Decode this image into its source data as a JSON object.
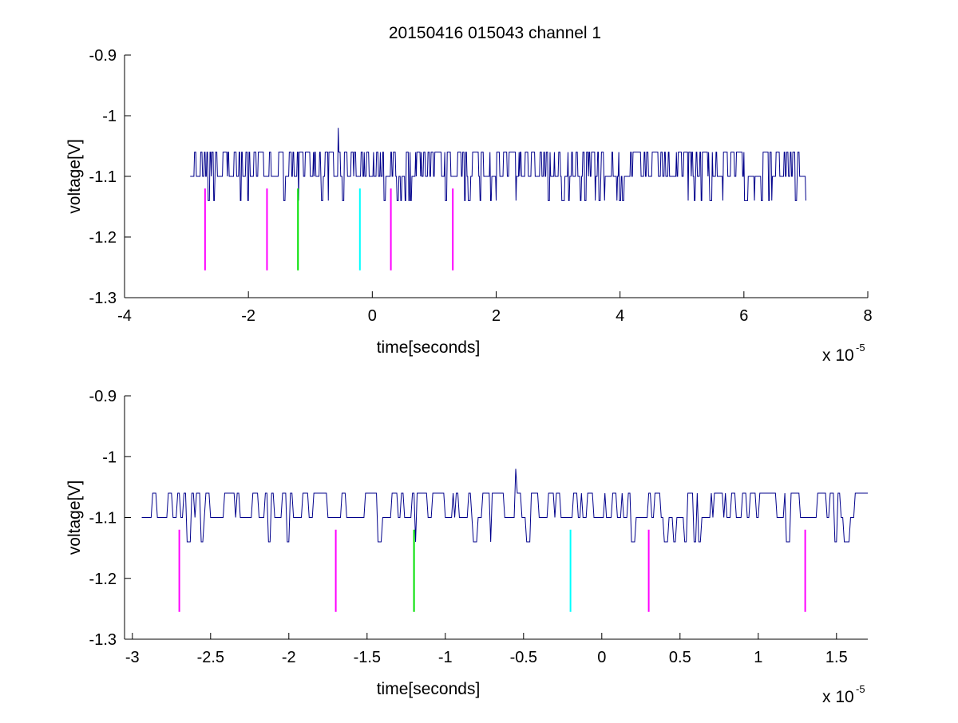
{
  "figure_title": "20150416 015043 channel 1",
  "colors": {
    "trace": "#00008b",
    "marker_magenta": "#ff00ff",
    "marker_green": "#00e000",
    "marker_cyan": "#00ffff",
    "axis": "#000000",
    "background": "#ffffff"
  },
  "chart_data": [
    {
      "type": "line",
      "title": "20150416 015043 channel 1",
      "xlabel": "time[seconds]",
      "ylabel": "voltage[V]",
      "x_multiplier_label": "x 10",
      "x_multiplier_exponent": "-5",
      "xlim": [
        -4e-05,
        8e-05
      ],
      "ylim": [
        -1.3,
        -0.9
      ],
      "y_reversed": true,
      "grid": false,
      "x_ticks": [
        -4e-05,
        -2e-05,
        0,
        2e-05,
        4e-05,
        6e-05,
        8e-05
      ],
      "x_tick_labels": [
        "-4",
        "-2",
        "0",
        "2",
        "4",
        "6",
        "8"
      ],
      "y_ticks": [
        -0.9,
        -1.0,
        -1.1,
        -1.2,
        -1.3
      ],
      "y_tick_labels": [
        "-0.9",
        "-1",
        "-1.1",
        "-1.2",
        "-1.3"
      ],
      "series": [
        {
          "trace_x_range": [
            -2.94e-05,
            7e-05
          ],
          "baseline_level": -1.1,
          "high_level": -1.06,
          "low_level": -1.14,
          "peak": {
            "x": -5.5e-06,
            "y": -1.02
          }
        }
      ],
      "markers": [
        {
          "x": -2.7e-05,
          "y_range": [
            -1.12,
            -1.255
          ],
          "color": "magenta"
        },
        {
          "x": -1.7e-05,
          "y_range": [
            -1.12,
            -1.255
          ],
          "color": "magenta"
        },
        {
          "x": -1.2e-05,
          "y_range": [
            -1.12,
            -1.255
          ],
          "color": "green"
        },
        {
          "x": -2e-06,
          "y_range": [
            -1.12,
            -1.255
          ],
          "color": "cyan"
        },
        {
          "x": 3e-06,
          "y_range": [
            -1.12,
            -1.255
          ],
          "color": "magenta"
        },
        {
          "x": 1.3e-05,
          "y_range": [
            -1.12,
            -1.255
          ],
          "color": "magenta"
        }
      ]
    },
    {
      "type": "line",
      "title": "",
      "xlabel": "time[seconds]",
      "ylabel": "voltage[V]",
      "x_multiplier_label": "x 10",
      "x_multiplier_exponent": "-5",
      "xlim": [
        -3.05e-05,
        1.7e-05
      ],
      "ylim": [
        -1.3,
        -0.9
      ],
      "y_reversed": true,
      "grid": false,
      "x_ticks": [
        -3e-05,
        -2.5e-05,
        -2e-05,
        -1.5e-05,
        -1e-05,
        -5e-06,
        0,
        5e-06,
        1e-05,
        1.5e-05
      ],
      "x_tick_labels": [
        "-3",
        "-2.5",
        "-2",
        "-1.5",
        "-1",
        "-0.5",
        "0",
        "0.5",
        "1",
        "1.5"
      ],
      "y_ticks": [
        -0.9,
        -1.0,
        -1.1,
        -1.2,
        -1.3
      ],
      "y_tick_labels": [
        "-0.9",
        "-1",
        "-1.1",
        "-1.2",
        "-1.3"
      ],
      "series": [
        {
          "trace_x_range": [
            -2.94e-05,
            1.7e-05
          ],
          "baseline_level": -1.1,
          "high_level": -1.06,
          "low_level": -1.14,
          "peak": {
            "x": -5.5e-06,
            "y": -1.02
          }
        }
      ],
      "markers": [
        {
          "x": -2.7e-05,
          "y_range": [
            -1.12,
            -1.255
          ],
          "color": "magenta"
        },
        {
          "x": -1.7e-05,
          "y_range": [
            -1.12,
            -1.255
          ],
          "color": "magenta"
        },
        {
          "x": -1.2e-05,
          "y_range": [
            -1.12,
            -1.255
          ],
          "color": "green"
        },
        {
          "x": -2e-06,
          "y_range": [
            -1.12,
            -1.255
          ],
          "color": "cyan"
        },
        {
          "x": 3e-06,
          "y_range": [
            -1.12,
            -1.255
          ],
          "color": "magenta"
        },
        {
          "x": 1.3e-05,
          "y_range": [
            -1.12,
            -1.255
          ],
          "color": "magenta"
        }
      ]
    }
  ]
}
